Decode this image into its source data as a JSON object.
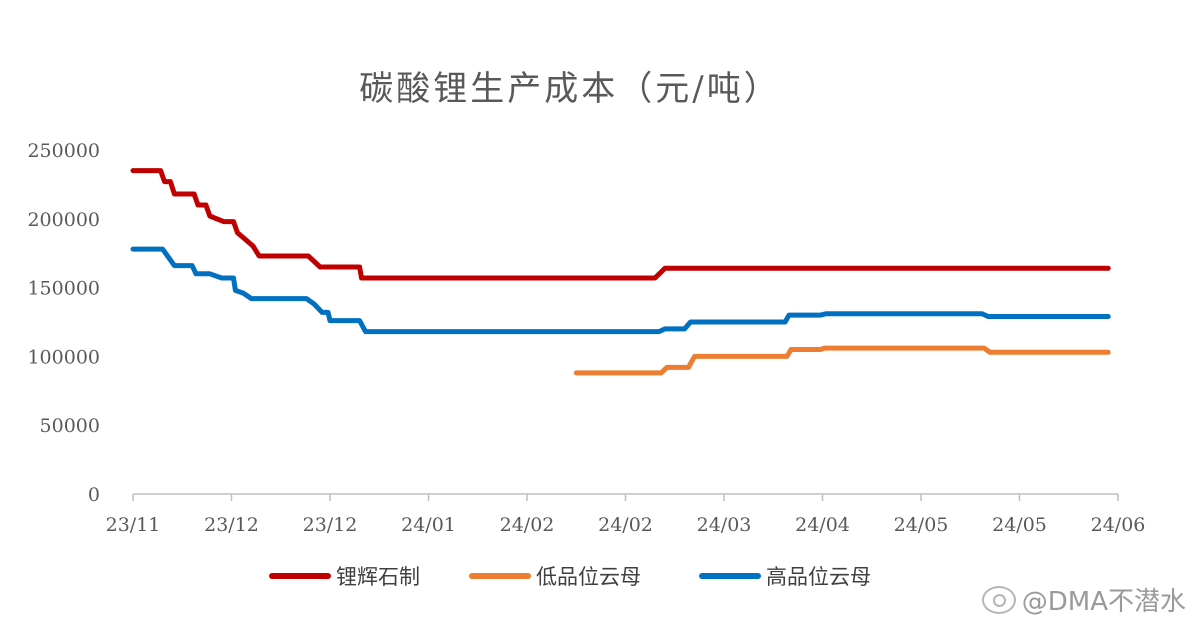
{
  "chart_data": {
    "type": "line",
    "title": "碳酸锂生产成本（元/吨）",
    "xlabel": "",
    "ylabel": "",
    "ylim": [
      0,
      250000
    ],
    "yticks": [
      "0",
      "50000",
      "100000",
      "150000",
      "200000",
      "250000"
    ],
    "x_tick_labels": [
      "23/11",
      "23/12",
      "23/12",
      "24/01",
      "24/02",
      "24/02",
      "24/03",
      "24/04",
      "24/05",
      "24/05",
      "24/06"
    ],
    "grid": false,
    "legend_position": "bottom",
    "series": [
      {
        "name": "锂辉石制",
        "color": "#c00000",
        "points": [
          [
            0,
            235000
          ],
          [
            0.28,
            235000
          ],
          [
            0.32,
            227000
          ],
          [
            0.38,
            227000
          ],
          [
            0.42,
            218000
          ],
          [
            0.62,
            218000
          ],
          [
            0.66,
            210000
          ],
          [
            0.74,
            210000
          ],
          [
            0.78,
            202000
          ],
          [
            0.92,
            198000
          ],
          [
            1.02,
            198000
          ],
          [
            1.06,
            190000
          ],
          [
            1.14,
            185000
          ],
          [
            1.22,
            180000
          ],
          [
            1.28,
            173000
          ],
          [
            1.78,
            173000
          ],
          [
            1.84,
            169000
          ],
          [
            1.9,
            165000
          ],
          [
            2.3,
            165000
          ],
          [
            2.32,
            157000
          ],
          [
            5.3,
            157000
          ],
          [
            5.4,
            164000
          ],
          [
            9.9,
            164000
          ]
        ]
      },
      {
        "name": "低品位云母",
        "color": "#ed7d31",
        "points": [
          [
            4.5,
            88000
          ],
          [
            5.36,
            88000
          ],
          [
            5.42,
            92000
          ],
          [
            5.64,
            92000
          ],
          [
            5.7,
            100000
          ],
          [
            6.64,
            100000
          ],
          [
            6.68,
            105000
          ],
          [
            6.98,
            105000
          ],
          [
            7.02,
            106000
          ],
          [
            8.64,
            106000
          ],
          [
            8.7,
            103000
          ],
          [
            9.9,
            103000
          ]
        ]
      },
      {
        "name": "高品位云母",
        "color": "#0070c0",
        "points": [
          [
            0,
            178000
          ],
          [
            0.3,
            178000
          ],
          [
            0.42,
            166000
          ],
          [
            0.6,
            166000
          ],
          [
            0.64,
            160000
          ],
          [
            0.78,
            160000
          ],
          [
            0.9,
            157000
          ],
          [
            1.02,
            157000
          ],
          [
            1.04,
            148000
          ],
          [
            1.12,
            146000
          ],
          [
            1.2,
            142000
          ],
          [
            1.76,
            142000
          ],
          [
            1.84,
            138000
          ],
          [
            1.92,
            132000
          ],
          [
            1.98,
            132000
          ],
          [
            2.0,
            126000
          ],
          [
            2.3,
            126000
          ],
          [
            2.36,
            118000
          ],
          [
            5.34,
            118000
          ],
          [
            5.4,
            120000
          ],
          [
            5.6,
            120000
          ],
          [
            5.66,
            125000
          ],
          [
            6.62,
            125000
          ],
          [
            6.66,
            130000
          ],
          [
            6.98,
            130000
          ],
          [
            7.04,
            131000
          ],
          [
            8.62,
            131000
          ],
          [
            8.68,
            129000
          ],
          [
            9.9,
            129000
          ]
        ]
      }
    ]
  },
  "watermark": {
    "icon": "weibo-icon",
    "text": "@DMA不潜水"
  }
}
